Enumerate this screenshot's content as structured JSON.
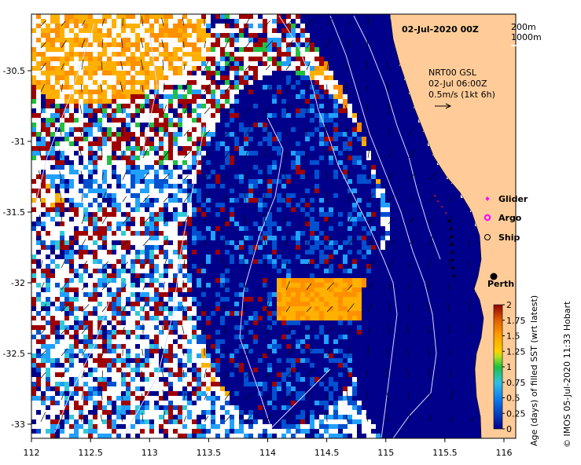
{
  "title": "02-Jul-2020 00Z",
  "contour_legend": [
    "200m",
    "1000m"
  ],
  "vector_info": {
    "line1": "NRT00 GSL",
    "line2": "02-Jul 06:00Z",
    "line3": "0.5m/s (1kt 6h)"
  },
  "legend_items": [
    {
      "label": "Glider",
      "color": "#ff00ff",
      "symbol": "diamond"
    },
    {
      "label": "Argo",
      "color": "#ff00ff",
      "symbol": "circle-open"
    },
    {
      "label": "Ship",
      "color": "#000000",
      "symbol": "circle-open"
    }
  ],
  "city": {
    "name": "Perth",
    "lon": 115.86,
    "lat": -31.95
  },
  "colorbar": {
    "title": "Age (days) of filled SST (wrt latest)",
    "min": 0,
    "max": 2,
    "ticks": [
      "0",
      "0.25",
      "0.5",
      "0.75",
      "1",
      "1.25",
      "1.5",
      "1.75",
      "2"
    ],
    "colors": [
      "#00008b",
      "#0050d0",
      "#22a0ff",
      "#30c8d8",
      "#20c040",
      "#a8e020",
      "#ffb000",
      "#ff9000",
      "#a00000"
    ]
  },
  "axes": {
    "x_ticks": [
      "112",
      "112.5",
      "113",
      "113.5",
      "114",
      "114.5",
      "115",
      "115.5",
      "116"
    ],
    "y_ticks": [
      "-30.5",
      "-31",
      "-31.5",
      "-32",
      "-32.5",
      "-33"
    ],
    "xlim": [
      112,
      116.1
    ],
    "ylim": [
      -33.1,
      -30.1
    ]
  },
  "credit": "© IMOS 05-Jul-2020 11:33 Hobart",
  "colors": {
    "land": "#ffcc99",
    "ocean_deep": "#00008b",
    "no_data": "#ffffff",
    "contour": "#d8d8ff"
  }
}
